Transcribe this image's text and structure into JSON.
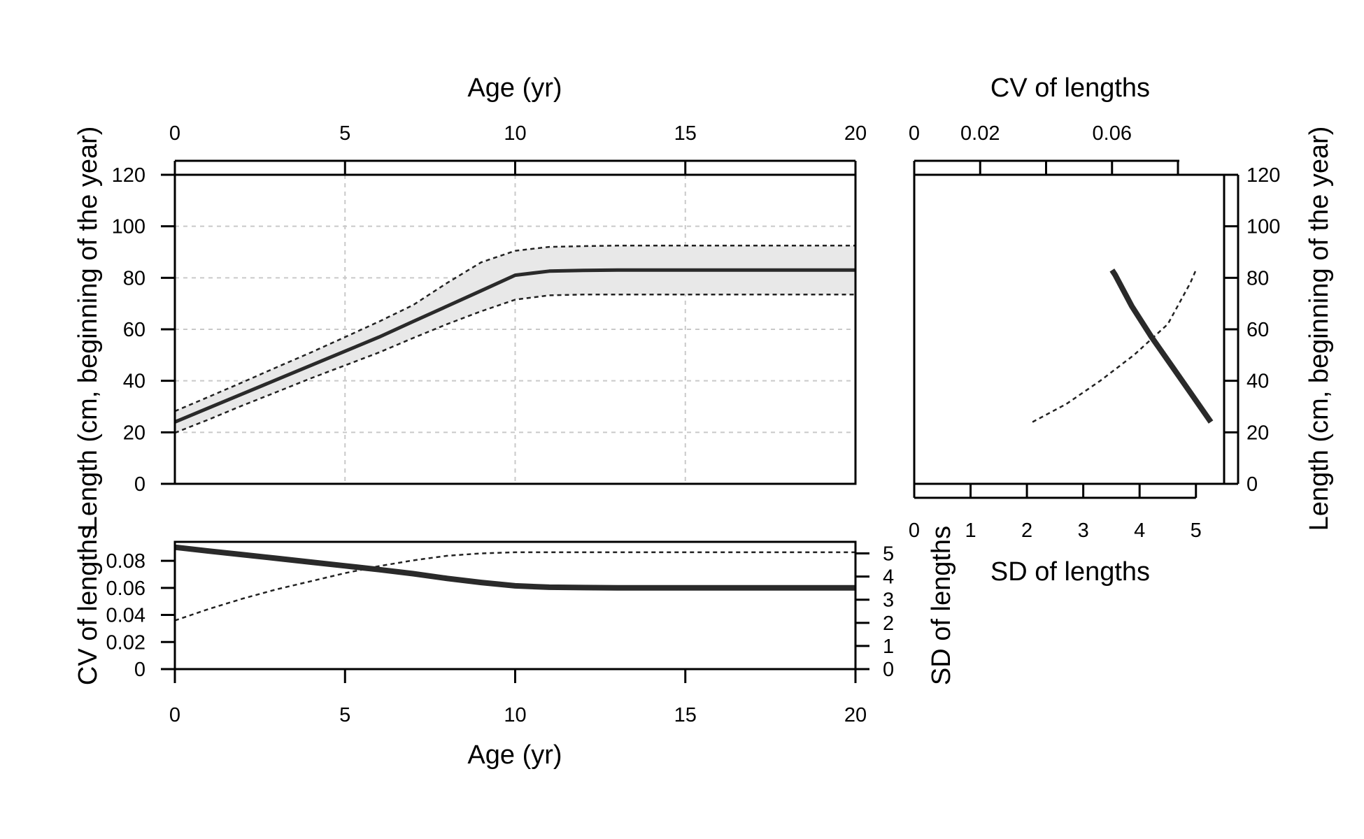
{
  "chart_data": [
    {
      "type": "line",
      "panel": "main",
      "xlabel_top": "Age (yr)",
      "ylabel": "Length (cm, beginning of the year)",
      "x_ticks": [
        "0",
        "5",
        "10",
        "15",
        "20"
      ],
      "y_ticks": [
        "0",
        "20",
        "40",
        "60",
        "80",
        "100",
        "120"
      ],
      "xlim": [
        0,
        20
      ],
      "ylim": [
        0,
        120
      ],
      "grid": true,
      "x": [
        0,
        1,
        2,
        3,
        4,
        5,
        6,
        7,
        8,
        9,
        10,
        11,
        12,
        13,
        14,
        15,
        16,
        17,
        18,
        19,
        20
      ],
      "series": [
        {
          "role": "mean",
          "style": "solid",
          "values": [
            24,
            29.5,
            35,
            40.5,
            46,
            51.5,
            57,
            63,
            69,
            75,
            81,
            82.6,
            82.9,
            83,
            83,
            83,
            83,
            83,
            83,
            83,
            83
          ]
        },
        {
          "role": "upper",
          "style": "dotted",
          "values": [
            28.2,
            33.8,
            39.5,
            45.3,
            51,
            57,
            63,
            69.4,
            78,
            86,
            90.5,
            92,
            92.3,
            92.5,
            92.5,
            92.5,
            92.5,
            92.5,
            92.5,
            92.5,
            92.5
          ]
        },
        {
          "role": "lower",
          "style": "dotted",
          "values": [
            19.8,
            25,
            30.5,
            35.7,
            41,
            46,
            51,
            56.6,
            62,
            67,
            71.5,
            73.2,
            73.5,
            73.5,
            73.5,
            73.5,
            73.5,
            73.5,
            73.5,
            73.5,
            73.5
          ]
        }
      ]
    },
    {
      "type": "line",
      "panel": "right",
      "xlabel_top": "CV of lengths",
      "xlabel_bottom": "SD of lengths",
      "ylabel": "Length (cm, beginning of the year)",
      "cv_ticks": [
        "0",
        "0.02",
        "0.06"
      ],
      "cv_tick_values": [
        0,
        0.02,
        0.04,
        0.06,
        0.08
      ],
      "cv_lim": [
        0,
        0.094
      ],
      "sd_ticks": [
        "0",
        "1",
        "2",
        "3",
        "4",
        "5"
      ],
      "sd_lim": [
        0,
        5.5
      ],
      "y_ticks": [
        "0",
        "20",
        "40",
        "60",
        "80",
        "100",
        "120"
      ],
      "ylim": [
        0,
        120
      ],
      "series": [
        {
          "role": "CV",
          "style": "solid-thick",
          "x": [
            0.09,
            0.084,
            0.078,
            0.072,
            0.066,
            0.061,
            0.06
          ],
          "y": [
            24,
            35,
            46,
            57,
            69,
            81,
            83
          ]
        },
        {
          "role": "SD",
          "style": "dotted",
          "x": [
            2.1,
            2.7,
            3.3,
            3.9,
            4.5,
            4.9,
            5.0
          ],
          "y": [
            24,
            31,
            40,
            50,
            62,
            78,
            83
          ]
        }
      ]
    },
    {
      "type": "line",
      "panel": "bottom",
      "xlabel": "Age (yr)",
      "ylabel_left": "CV of lengths",
      "ylabel_right": "SD of lengths",
      "x_ticks": [
        "0",
        "5",
        "10",
        "15",
        "20"
      ],
      "xlim": [
        0,
        20
      ],
      "cv_ticks": [
        "0",
        "0.02",
        "0.04",
        "0.06",
        "0.08"
      ],
      "cv_lim": [
        0,
        0.094
      ],
      "sd_ticks": [
        "0",
        "1",
        "2",
        "3",
        "4",
        "5"
      ],
      "sd_lim": [
        0,
        5.5
      ],
      "x": [
        0,
        1,
        2,
        3,
        4,
        5,
        6,
        7,
        8,
        9,
        10,
        11,
        12,
        13,
        14,
        15,
        16,
        17,
        18,
        19,
        20
      ],
      "series": [
        {
          "role": "CV",
          "style": "solid-thick",
          "axis": "left",
          "values": [
            0.09,
            0.0872,
            0.0845,
            0.0818,
            0.079,
            0.0763,
            0.0735,
            0.0705,
            0.067,
            0.064,
            0.0615,
            0.0605,
            0.0602,
            0.06,
            0.06,
            0.06,
            0.06,
            0.06,
            0.06,
            0.06,
            0.06
          ]
        },
        {
          "role": "SD",
          "style": "dotted",
          "axis": "right",
          "values": [
            2.1,
            2.6,
            3.05,
            3.45,
            3.8,
            4.15,
            4.45,
            4.7,
            4.9,
            5.0,
            5.05,
            5.05,
            5.05,
            5.05,
            5.05,
            5.05,
            5.05,
            5.05,
            5.05,
            5.05,
            5.05
          ]
        }
      ]
    }
  ]
}
